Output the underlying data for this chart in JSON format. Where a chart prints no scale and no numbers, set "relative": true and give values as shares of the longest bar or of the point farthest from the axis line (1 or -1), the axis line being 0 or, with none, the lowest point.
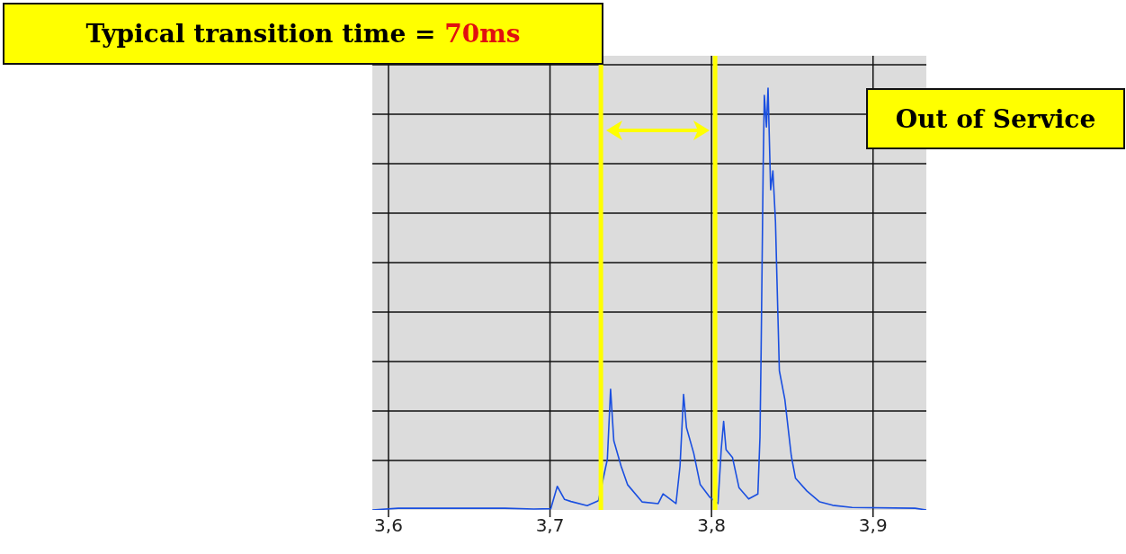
{
  "chart_data": {
    "type": "line",
    "relative": true,
    "grid": true,
    "marker": "none",
    "line_style": "solid",
    "xlim": [
      3.59,
      3.933
    ],
    "xticks": [
      {
        "value": 3.6,
        "label": "3,6"
      },
      {
        "value": 3.7,
        "label": "3,7"
      },
      {
        "value": 3.8,
        "label": "3,8"
      },
      {
        "value": 3.9,
        "label": "3,9"
      }
    ],
    "x": [
      3.59,
      3.606,
      3.672,
      3.69,
      3.7005,
      3.7045,
      3.709,
      3.713,
      3.723,
      3.73,
      3.7355,
      3.7375,
      3.7395,
      3.744,
      3.748,
      3.757,
      3.767,
      3.77,
      3.778,
      3.7805,
      3.7827,
      3.7845,
      3.789,
      3.793,
      3.799,
      3.804,
      3.806,
      3.8075,
      3.809,
      3.813,
      3.817,
      3.823,
      3.8287,
      3.83,
      3.8307,
      3.832,
      3.8327,
      3.834,
      3.835,
      3.8366,
      3.838,
      3.8396,
      3.8405,
      3.842,
      3.8454,
      3.8494,
      3.852,
      3.859,
      3.867,
      3.875,
      3.887,
      3.926,
      3.933
    ],
    "series": [
      {
        "color": "#1a4fe0",
        "values": [
          0.0,
          0.004,
          0.004,
          0.002,
          0.003,
          0.056,
          0.025,
          0.02,
          0.01,
          0.022,
          0.12,
          0.286,
          0.164,
          0.104,
          0.06,
          0.019,
          0.015,
          0.038,
          0.015,
          0.104,
          0.274,
          0.195,
          0.134,
          0.06,
          0.03,
          0.015,
          0.143,
          0.21,
          0.143,
          0.124,
          0.053,
          0.026,
          0.038,
          0.173,
          0.375,
          0.819,
          0.983,
          0.908,
          1.0,
          0.759,
          0.804,
          0.683,
          0.548,
          0.33,
          0.262,
          0.128,
          0.075,
          0.045,
          0.019,
          0.011,
          0.006,
          0.004,
          0.0
        ]
      }
    ],
    "ref_lines": [
      {
        "axis": "x",
        "value": 3.7315,
        "color": "#ffff00"
      },
      {
        "axis": "x",
        "value": 3.8022,
        "color": "#ffff00"
      }
    ],
    "annotations": [
      "Typical transition time = 70ms",
      "Out of Service"
    ]
  }
}
